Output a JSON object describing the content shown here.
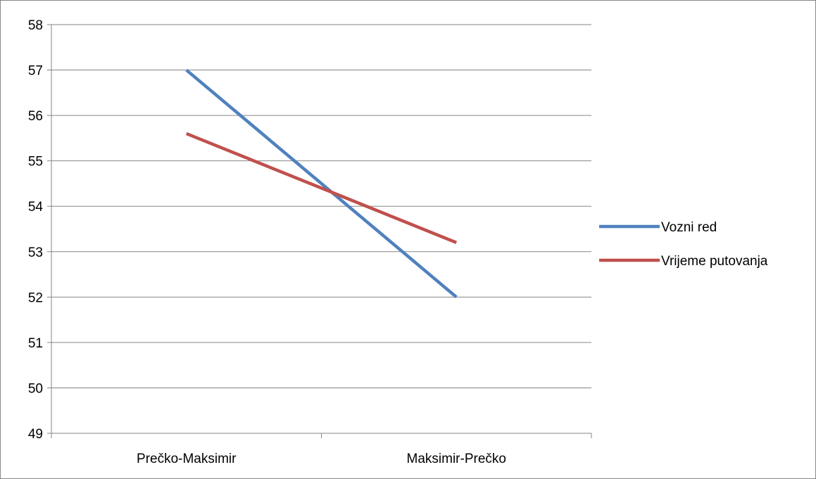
{
  "chart_data": {
    "type": "line",
    "title": "",
    "xlabel": "",
    "ylabel": "",
    "categories": [
      "Prečko-Maksimir",
      "Maksimir-Prečko"
    ],
    "series": [
      {
        "name": "Vozni red",
        "values": [
          57,
          52
        ],
        "color": "#4f81bd"
      },
      {
        "name": "Vrijeme putovanja",
        "values": [
          55.6,
          53.2
        ],
        "color": "#c0504d"
      }
    ],
    "ylim": [
      49,
      58
    ],
    "y_ticks": [
      "49",
      "50",
      "51",
      "52",
      "53",
      "54",
      "55",
      "56",
      "57",
      "58"
    ],
    "grid": true,
    "legend_position": "right"
  }
}
